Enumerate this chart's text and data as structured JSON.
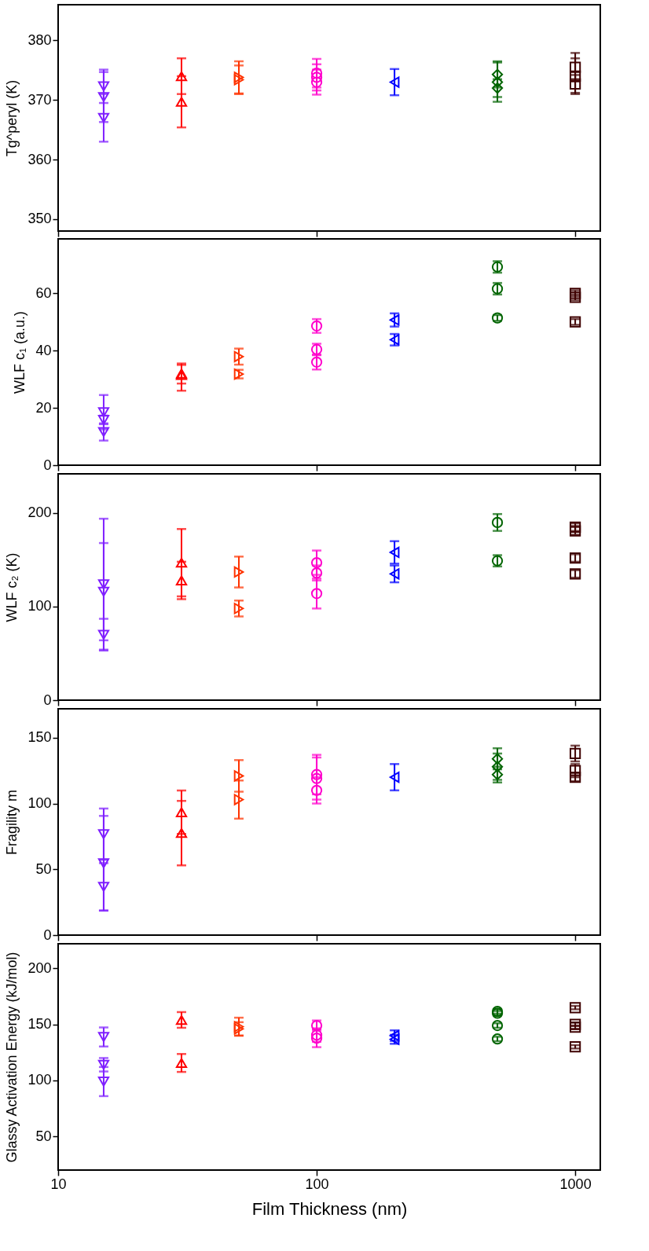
{
  "chart_data": [
    {
      "type": "scatter",
      "ylabel": "Tg^peryl  (K)",
      "log": "x",
      "xlim": [
        10,
        1250
      ],
      "xticks": [
        10,
        100,
        1000
      ],
      "ylim": [
        348,
        386
      ],
      "yticks": [
        350,
        360,
        370,
        380
      ],
      "tick_labels": "y",
      "grid": false,
      "series": [
        {
          "color": "#7f1fff",
          "marker": "triangle-down",
          "x": [
            15,
            15,
            15
          ],
          "values": [
            372.3,
            370.5,
            367
          ],
          "errors": [
            2.8,
            4.2,
            4
          ]
        },
        {
          "color": "#ff0000",
          "marker": "triangle-up",
          "x": [
            30,
            30
          ],
          "values": [
            374,
            369.7
          ],
          "errors": [
            3,
            4.3
          ]
        },
        {
          "color": "#ff3300",
          "marker": "triangle-right",
          "x": [
            50,
            50
          ],
          "values": [
            373.8,
            373.4
          ],
          "errors": [
            2.7,
            2.4
          ]
        },
        {
          "color": "#ff00cc",
          "marker": "circle",
          "x": [
            100,
            100,
            100
          ],
          "values": [
            374.5,
            373.8,
            373
          ],
          "errors": [
            2.4,
            2.2,
            2.1
          ]
        },
        {
          "color": "#0000ff",
          "marker": "triangle-left",
          "x": [
            200
          ],
          "values": [
            373
          ],
          "errors": [
            2.2
          ]
        },
        {
          "color": "#006400",
          "marker": "diamond",
          "x": [
            500,
            500,
            500
          ],
          "values": [
            374.3,
            373,
            372
          ],
          "errors": [
            2.2,
            3.3,
            1.5
          ]
        },
        {
          "color": "#3f0000",
          "marker": "square",
          "x": [
            1000,
            1000,
            1000
          ],
          "values": [
            375.5,
            374,
            372.7
          ],
          "errors": [
            2.4,
            3,
            1.5
          ]
        }
      ]
    },
    {
      "type": "scatter",
      "ylabel": "WLF c₁  (a.u.)",
      "log": "x",
      "xlim": [
        10,
        1250
      ],
      "xticks": [
        10,
        100,
        1000
      ],
      "ylim": [
        0,
        79
      ],
      "yticks": [
        0,
        20,
        40,
        60
      ],
      "tick_labels": "y",
      "grid": false,
      "series": [
        {
          "color": "#7f1fff",
          "marker": "triangle-down",
          "x": [
            15,
            15,
            15
          ],
          "values": [
            18.5,
            15.8,
            11.6
          ],
          "errors": [
            6,
            1.5,
            3
          ]
        },
        {
          "color": "#ff0000",
          "marker": "triangle-up",
          "x": [
            30,
            30
          ],
          "values": [
            32,
            31.5
          ],
          "errors": [
            3.5,
            [
              26,
              35
            ]
          ]
        },
        {
          "color": "#ff3300",
          "marker": "triangle-right",
          "x": [
            50,
            50
          ],
          "values": [
            37.9,
            31.8
          ],
          "errors": [
            2.8,
            1.5
          ]
        },
        {
          "color": "#ff00cc",
          "marker": "circle",
          "x": [
            100,
            100,
            100
          ],
          "values": [
            48.6,
            40.4,
            36
          ],
          "errors": [
            2.4,
            2,
            2.6
          ]
        },
        {
          "color": "#0000ff",
          "marker": "triangle-left",
          "x": [
            200,
            200
          ],
          "values": [
            50.7,
            43.8
          ],
          "errors": [
            2.3,
            2
          ]
        },
        {
          "color": "#006400",
          "marker": "circle",
          "x": [
            500,
            500,
            500
          ],
          "values": [
            69.2,
            61.6,
            51.4
          ],
          "errors": [
            2,
            2,
            1
          ]
        },
        {
          "color": "#3f0000",
          "marker": "square",
          "x": [
            1000,
            1000,
            1000
          ],
          "values": [
            60,
            58.6,
            50
          ],
          "errors": [
            1,
            1,
            1
          ]
        }
      ]
    },
    {
      "type": "scatter",
      "ylabel": "WLF c₂  (K)",
      "log": "x",
      "xlim": [
        10,
        1250
      ],
      "xticks": [
        10,
        100,
        1000
      ],
      "ylim": [
        0,
        242
      ],
      "yticks": [
        0,
        100,
        200
      ],
      "tick_labels": "y",
      "grid": false,
      "series": [
        {
          "color": "#7f1fff",
          "marker": "triangle-down",
          "x": [
            15,
            15,
            15
          ],
          "values": [
            124,
            116,
            70
          ],
          "errors": [
            70,
            52,
            17
          ]
        },
        {
          "color": "#ff0000",
          "marker": "triangle-up",
          "x": [
            30,
            30
          ],
          "values": [
            147,
            128
          ],
          "errors": [
            36,
            20
          ]
        },
        {
          "color": "#ff3300",
          "marker": "triangle-right",
          "x": [
            50,
            50
          ],
          "values": [
            137,
            98
          ],
          "errors": [
            16.5,
            8.5
          ]
        },
        {
          "color": "#ff00cc",
          "marker": "circle",
          "x": [
            100,
            100,
            100
          ],
          "values": [
            147,
            136,
            114
          ],
          "errors": [
            13,
            8,
            16
          ]
        },
        {
          "color": "#0000ff",
          "marker": "triangle-left",
          "x": [
            200,
            200
          ],
          "values": [
            158,
            135
          ],
          "errors": [
            12,
            9
          ]
        },
        {
          "color": "#006400",
          "marker": "circle",
          "x": [
            500,
            500
          ],
          "values": [
            190,
            149
          ],
          "errors": [
            9,
            6
          ]
        },
        {
          "color": "#3f0000",
          "marker": "square",
          "x": [
            1000,
            1000,
            1000,
            1000
          ],
          "values": [
            185,
            181,
            152,
            135
          ],
          "errors": [
            4,
            4,
            4,
            4
          ]
        }
      ]
    },
    {
      "type": "scatter",
      "ylabel": "Fragility m",
      "log": "x",
      "xlim": [
        10,
        1250
      ],
      "xticks": [
        10,
        100,
        1000
      ],
      "ylim": [
        0,
        172
      ],
      "yticks": [
        0,
        50,
        100,
        150
      ],
      "tick_labels": "y",
      "grid": false,
      "series": [
        {
          "color": "#7f1fff",
          "marker": "triangle-down",
          "x": [
            15,
            15,
            15
          ],
          "values": [
            76.7,
            54.6,
            36.7
          ],
          "errors": [
            19.5,
            36,
            18
          ]
        },
        {
          "color": "#ff0000",
          "marker": "triangle-up",
          "x": [
            30,
            30
          ],
          "values": [
            93.4,
            77.6
          ],
          "errors": [
            16.5,
            [
              53,
              102
            ]
          ]
        },
        {
          "color": "#ff3300",
          "marker": "triangle-right",
          "x": [
            50,
            50
          ],
          "values": [
            121,
            103
          ],
          "errors": [
            12,
            14.5
          ]
        },
        {
          "color": "#ff00cc",
          "marker": "circle",
          "x": [
            100,
            100,
            100
          ],
          "values": [
            122,
            119,
            110
          ],
          "errors": [
            15,
            16,
            10
          ]
        },
        {
          "color": "#0000ff",
          "marker": "triangle-left",
          "x": [
            200
          ],
          "values": [
            120
          ],
          "errors": [
            10
          ]
        },
        {
          "color": "#006400",
          "marker": "diamond",
          "x": [
            500,
            500,
            500
          ],
          "values": [
            134,
            128,
            122
          ],
          "errors": [
            8,
            10,
            6
          ]
        },
        {
          "color": "#3f0000",
          "marker": "square",
          "x": [
            1000,
            1000,
            1000
          ],
          "values": [
            138,
            125,
            120
          ],
          "errors": [
            6,
            5,
            3
          ]
        }
      ]
    },
    {
      "type": "scatter",
      "ylabel": "Glassy Activation Energy  (kJ/mol)",
      "xlabel": "Film Thickness  (nm)",
      "log": "x",
      "xlim": [
        10,
        1250
      ],
      "xticks": [
        10,
        100,
        1000
      ],
      "ylim": [
        20,
        222
      ],
      "yticks": [
        50,
        100,
        150,
        200
      ],
      "grid": false,
      "series": [
        {
          "color": "#7f1fff",
          "marker": "triangle-down",
          "x": [
            15,
            15,
            15
          ],
          "values": [
            138.8,
            114,
            99
          ],
          "errors": [
            8.5,
            6,
            13
          ]
        },
        {
          "color": "#ff0000",
          "marker": "triangle-up",
          "x": [
            30,
            30
          ],
          "values": [
            154,
            115.6
          ],
          "errors": [
            7,
            8
          ]
        },
        {
          "color": "#ff3300",
          "marker": "triangle-right",
          "x": [
            50,
            50
          ],
          "values": [
            148,
            146
          ],
          "errors": [
            8,
            6
          ]
        },
        {
          "color": "#ff00cc",
          "marker": "circle",
          "x": [
            100,
            100,
            100
          ],
          "values": [
            149,
            140.5,
            137.7
          ],
          "errors": [
            4.5,
            6,
            8
          ]
        },
        {
          "color": "#0000ff",
          "marker": "triangle-left",
          "x": [
            200,
            200
          ],
          "values": [
            140,
            136.7
          ],
          "errors": [
            4.7,
            4
          ]
        },
        {
          "color": "#006400",
          "marker": "circle",
          "x": [
            500,
            500,
            500,
            500
          ],
          "values": [
            161.6,
            160,
            149,
            137
          ],
          "errors": [
            2,
            2,
            2,
            2
          ]
        },
        {
          "color": "#3f0000",
          "marker": "square",
          "x": [
            1000,
            1000,
            1000,
            1000
          ],
          "values": [
            165,
            150,
            147.5,
            130
          ],
          "errors": [
            1.5,
            1.5,
            1.5,
            1.5
          ]
        }
      ]
    }
  ]
}
